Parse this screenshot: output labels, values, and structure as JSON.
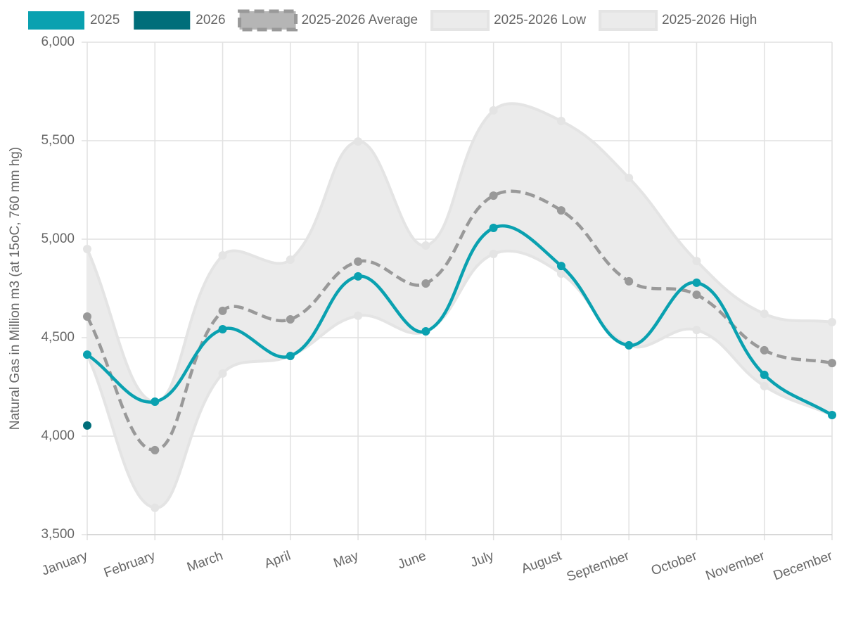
{
  "chart_data": {
    "type": "line",
    "y_label": "Natural Gas in Million m3 (at 15oC, 760 mm hg)",
    "categories": [
      "January",
      "February",
      "March",
      "April",
      "May",
      "June",
      "July",
      "August",
      "September",
      "October",
      "November",
      "December"
    ],
    "series": [
      {
        "name": "2025",
        "color": "#0aa1b0",
        "values": [
          4414,
          4175,
          4543,
          4407,
          4811,
          4532,
          5057,
          4864,
          4461,
          4779,
          4311,
          4107
        ]
      },
      {
        "name": "2026",
        "color": "#006e7a",
        "values": [
          4054,
          null,
          null,
          null,
          null,
          null,
          null,
          null,
          null,
          null,
          null,
          null
        ]
      },
      {
        "name": "2025-2026 Average",
        "color": "#999999",
        "dashed": true,
        "values": [
          4607,
          3929,
          4636,
          4593,
          4886,
          4775,
          5221,
          5146,
          4786,
          4718,
          4436,
          4371
        ]
      },
      {
        "name": "2025-2026 Low",
        "color": "#e4e4e4",
        "values": [
          4414,
          3636,
          4318,
          4407,
          4611,
          4532,
          4925,
          4825,
          4461,
          4539,
          4254,
          4107
        ]
      },
      {
        "name": "2025-2026 High",
        "color": "#e4e4e4",
        "values": [
          4950,
          4175,
          4918,
          4896,
          5496,
          4968,
          5654,
          5600,
          5311,
          4889,
          4621,
          4579
        ]
      }
    ],
    "band_color": "#ebebeb",
    "ylim": [
      3500,
      6000
    ],
    "yticks": [
      {
        "value": 3500,
        "label": "3,500"
      },
      {
        "value": 4000,
        "label": "4,000"
      },
      {
        "value": 4500,
        "label": "4,500"
      },
      {
        "value": 5000,
        "label": "5,000"
      },
      {
        "value": 5500,
        "label": "5,500"
      },
      {
        "value": 6000,
        "label": "6,000"
      }
    ],
    "grid": true
  }
}
